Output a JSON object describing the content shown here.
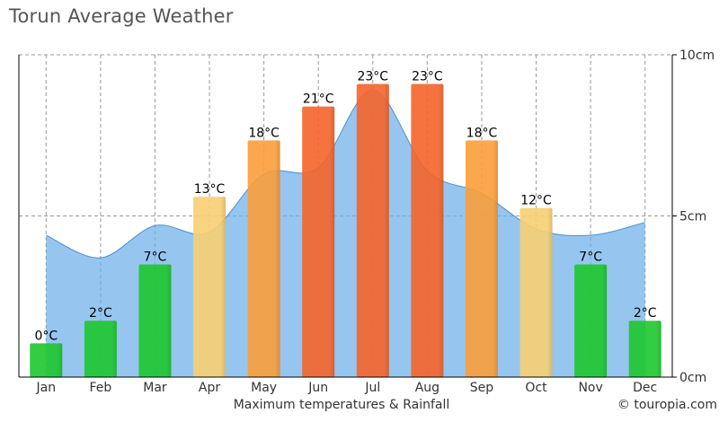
{
  "title": "Torun Average Weather",
  "footer_label": "Maximum temperatures & Rainfall",
  "credit": "© touropia.com",
  "colors": {
    "cold": "#1dc62e",
    "mild": "#f7cf72",
    "warm": "#f99d3a",
    "hot": "#f5642a",
    "rain": "#6aaee8",
    "grid": "#999999"
  },
  "chart_data": {
    "type": "bar",
    "categories": [
      "Jan",
      "Feb",
      "Mar",
      "Apr",
      "May",
      "Jun",
      "Jul",
      "Aug",
      "Sep",
      "Oct",
      "Nov",
      "Dec"
    ],
    "series": [
      {
        "name": "Maximum temperatures",
        "unit": "°C",
        "values": [
          0,
          2,
          7,
          13,
          18,
          21,
          23,
          23,
          18,
          12,
          7,
          2
        ],
        "labels": [
          "0°C",
          "2°C",
          "7°C",
          "13°C",
          "18°C",
          "21°C",
          "23°C",
          "23°C",
          "18°C",
          "12°C",
          "7°C",
          "2°C"
        ]
      },
      {
        "name": "Rainfall",
        "type": "area",
        "unit": "cm",
        "values": [
          4.4,
          3.7,
          4.7,
          4.5,
          6.3,
          6.5,
          8.9,
          6.4,
          5.7,
          4.6,
          4.4,
          4.8
        ]
      }
    ],
    "y_right": {
      "ylim": [
        0,
        10
      ],
      "ticks": [
        "0cm",
        "5cm",
        "10cm"
      ]
    },
    "grid": true
  }
}
